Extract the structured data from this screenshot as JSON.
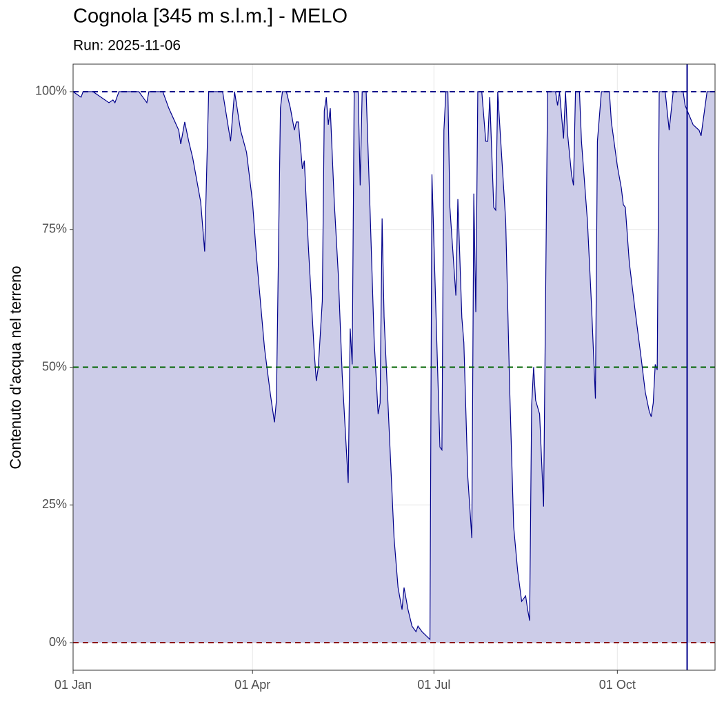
{
  "chart_data": {
    "type": "area",
    "title": "Cognola [345 m s.l.m.] - MELO",
    "subtitle": "Run: 2025-11-06",
    "ylabel": "Contenuto d'acqua nel terreno",
    "x": [
      0,
      4,
      5,
      10,
      18,
      20,
      21,
      23,
      33,
      37,
      38,
      45,
      48,
      53,
      54,
      56,
      58,
      60,
      64,
      66,
      68,
      75,
      79,
      81,
      84,
      87,
      90,
      92,
      96,
      99,
      101,
      102,
      104,
      105,
      107,
      109,
      111,
      112,
      113,
      115,
      116,
      118,
      121,
      122,
      123,
      125,
      126,
      127,
      128,
      129,
      131,
      133,
      135,
      138,
      139,
      140,
      141,
      143,
      144,
      145,
      147,
      149,
      151,
      153,
      154,
      155,
      156,
      159,
      161,
      163,
      165,
      166,
      168,
      170,
      172,
      173,
      175,
      179,
      180,
      182,
      184,
      185,
      186,
      187,
      188,
      189,
      192,
      193,
      195,
      196,
      198,
      200,
      201,
      202,
      203,
      205,
      207,
      208,
      209,
      211,
      212,
      213,
      214,
      217,
      219,
      221,
      223,
      225,
      227,
      228,
      229,
      230,
      231,
      232,
      234,
      236,
      238,
      242,
      243,
      244,
      246,
      247,
      248,
      250,
      251,
      252,
      254,
      255,
      258,
      260,
      262,
      263,
      265,
      269,
      270,
      273,
      275,
      276,
      277,
      279,
      282,
      285,
      287,
      289,
      290,
      291,
      292,
      293,
      294,
      297,
      299,
      301,
      306,
      307,
      311,
      314,
      315,
      318,
      322
    ],
    "series": [
      {
        "color": "#00008b",
        "fill": "#cccce8",
        "values": [
          100,
          99,
          100,
          100,
          98,
          98.5,
          98,
          100,
          100,
          98,
          100,
          100,
          97,
          93,
          90.5,
          94.5,
          91,
          88,
          80,
          71,
          100,
          100,
          91,
          100,
          93,
          89,
          80,
          70,
          53.5,
          45,
          40,
          44,
          97,
          100,
          100,
          97,
          93,
          94.5,
          94.5,
          86,
          87.5,
          72,
          52.5,
          47.5,
          50,
          62,
          96.5,
          99,
          94,
          97,
          80,
          67,
          48.5,
          29,
          57,
          50.5,
          100,
          100,
          83,
          100,
          100,
          78,
          55,
          41.5,
          43.5,
          77,
          59,
          35,
          19,
          10,
          6,
          10,
          6,
          3,
          2,
          3,
          2,
          0.6,
          85,
          60,
          35.5,
          35,
          93,
          100,
          100,
          79,
          63,
          80.5,
          59,
          54.5,
          30,
          19,
          81.5,
          60,
          100,
          100,
          91,
          91,
          99,
          79,
          78.5,
          100,
          94,
          76.5,
          46,
          21,
          13,
          7.5,
          8.5,
          6,
          4,
          43,
          50,
          44,
          41.5,
          24.7,
          100,
          100,
          97.5,
          100,
          91.5,
          100,
          92.5,
          85,
          83,
          100,
          100,
          91,
          76.5,
          61.5,
          44.3,
          91,
          100,
          100,
          94.5,
          86.5,
          82.5,
          79.5,
          79,
          69,
          60,
          51.5,
          45.5,
          42,
          41,
          43.5,
          50.5,
          49.5,
          100,
          100,
          93,
          100,
          100,
          97.5,
          94,
          93,
          92,
          100,
          100
        ]
      }
    ],
    "xlim": [
      0,
      322
    ],
    "xticks": [
      {
        "value": 0,
        "label": "01 Jan"
      },
      {
        "value": 90,
        "label": "01 Apr"
      },
      {
        "value": 181,
        "label": "01 Jul"
      },
      {
        "value": 273,
        "label": "01 Oct"
      }
    ],
    "ylim": [
      -5,
      105
    ],
    "yticks": [
      {
        "value": 0,
        "label": "0%"
      },
      {
        "value": 25,
        "label": "25%"
      },
      {
        "value": 50,
        "label": "50%"
      },
      {
        "value": 75,
        "label": "75%"
      },
      {
        "value": 100,
        "label": "100%"
      }
    ],
    "hlines": [
      {
        "value": 100,
        "color": "#00008b"
      },
      {
        "value": 50,
        "color": "#006400"
      },
      {
        "value": 0,
        "color": "#8b0000"
      }
    ],
    "vline": {
      "value": 308,
      "color": "#00008b"
    },
    "grid": true
  }
}
